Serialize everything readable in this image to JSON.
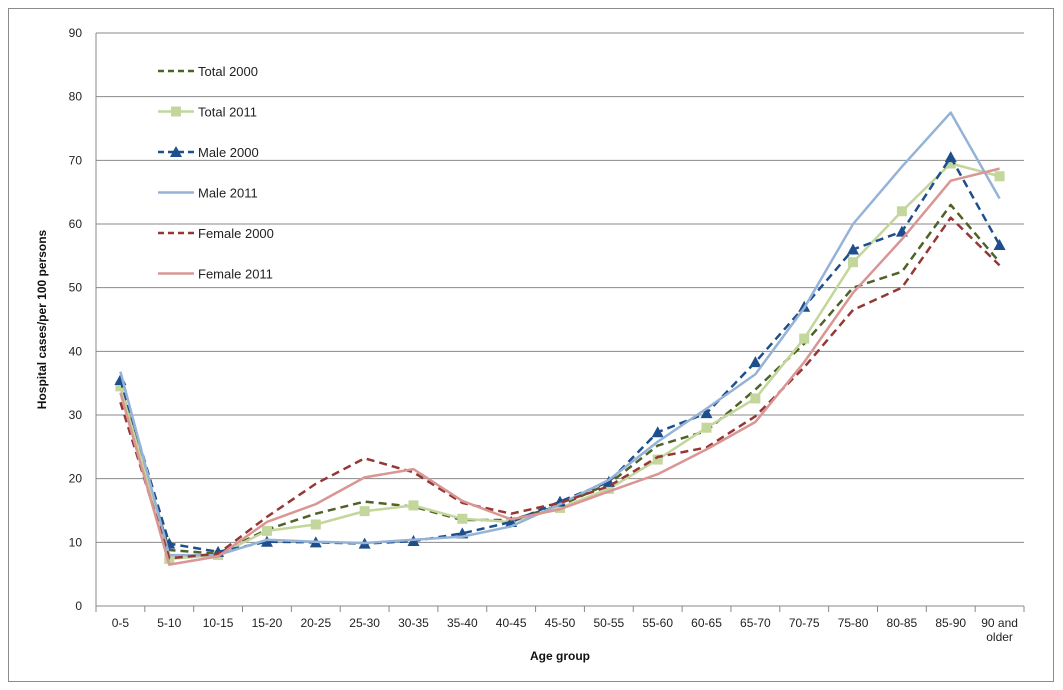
{
  "chart_data": {
    "type": "line",
    "title": "",
    "xlabel": "Age group",
    "ylabel": "Hospital cases/per 100 persons",
    "ylim": [
      0,
      90
    ],
    "yticks": [
      0,
      10,
      20,
      30,
      40,
      50,
      60,
      70,
      80,
      90
    ],
    "grid": "horizontal",
    "legend_position": "top-left",
    "categories": [
      "0-5",
      "5-10",
      "10-15",
      "15-20",
      "20-25",
      "25-30",
      "30-35",
      "35-40",
      "40-45",
      "45-50",
      "50-55",
      "55-60",
      "60-65",
      "65-70",
      "70-75",
      "75-80",
      "80-85",
      "85-90",
      "90 and older"
    ],
    "series": [
      {
        "name": "Total 2000",
        "color": "#4f6228",
        "dash": "dashed",
        "marker": "none",
        "values": [
          34.5,
          8.8,
          8.2,
          12.0,
          14.5,
          16.4,
          15.6,
          13.5,
          13.5,
          15.8,
          19.2,
          25.2,
          27.5,
          34.0,
          41.2,
          50.0,
          52.5,
          63.0,
          54.0
        ]
      },
      {
        "name": "Total 2011",
        "color": "#c3d69b",
        "dash": "solid",
        "marker": "square",
        "values": [
          34.5,
          7.4,
          8.0,
          11.8,
          12.8,
          14.9,
          15.8,
          13.7,
          13.2,
          15.4,
          18.4,
          23.0,
          28.0,
          32.6,
          42.0,
          54.0,
          62.0,
          69.5,
          67.5
        ]
      },
      {
        "name": "Male 2000",
        "color": "#1f4e8c",
        "dash": "dashed",
        "marker": "triangle",
        "values": [
          35.5,
          9.8,
          8.5,
          10.1,
          10.0,
          9.8,
          10.2,
          11.4,
          13.2,
          16.4,
          19.5,
          27.3,
          30.3,
          38.3,
          47.0,
          56.0,
          58.8,
          70.5,
          56.7
        ]
      },
      {
        "name": "Male 2011",
        "color": "#95b3d7",
        "dash": "solid",
        "marker": "none",
        "values": [
          36.8,
          8.0,
          8.0,
          10.4,
          10.1,
          9.9,
          10.4,
          10.9,
          12.5,
          16.0,
          19.8,
          25.8,
          31.0,
          36.4,
          46.8,
          60.0,
          69.0,
          77.5,
          64.0
        ]
      },
      {
        "name": "Female 2000",
        "color": "#953735",
        "dash": "dashed",
        "marker": "none",
        "values": [
          32.0,
          7.5,
          8.2,
          14.0,
          19.2,
          23.2,
          21.0,
          16.2,
          14.5,
          16.2,
          18.8,
          23.4,
          24.9,
          29.8,
          37.5,
          46.5,
          50.0,
          61.0,
          53.5
        ]
      },
      {
        "name": "Female 2011",
        "color": "#d99694",
        "dash": "solid",
        "marker": "none",
        "values": [
          33.5,
          6.5,
          7.8,
          13.2,
          16.0,
          20.2,
          21.5,
          16.5,
          13.6,
          15.2,
          18.0,
          20.7,
          24.6,
          28.9,
          38.3,
          49.2,
          57.6,
          66.8,
          68.7
        ]
      }
    ]
  }
}
